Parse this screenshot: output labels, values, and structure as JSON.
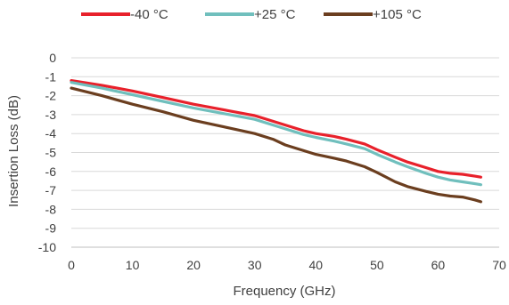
{
  "chart_data": {
    "type": "line",
    "title": "",
    "xlabel": "Frequency (GHz)",
    "ylabel": "Insertion Loss (dB)",
    "xlim": [
      0,
      70
    ],
    "ylim": [
      -10,
      0
    ],
    "xticks": [
      0,
      10,
      20,
      30,
      40,
      50,
      60,
      70
    ],
    "yticks": [
      0,
      -1,
      -2,
      -3,
      -4,
      -5,
      -6,
      -7,
      -8,
      -9,
      -10
    ],
    "grid": "horizontal",
    "legend_position": "top",
    "series": [
      {
        "name": "-40 °C",
        "color": "#e8212b",
        "x": [
          0,
          5,
          10,
          15,
          20,
          25,
          30,
          33,
          35,
          38,
          40,
          43,
          45,
          48,
          50,
          53,
          55,
          58,
          60,
          62,
          64,
          66,
          67
        ],
        "y": [
          -1.2,
          -1.45,
          -1.75,
          -2.1,
          -2.45,
          -2.75,
          -3.05,
          -3.35,
          -3.55,
          -3.85,
          -4.0,
          -4.15,
          -4.3,
          -4.55,
          -4.85,
          -5.25,
          -5.5,
          -5.8,
          -6.0,
          -6.1,
          -6.15,
          -6.25,
          -6.3
        ]
      },
      {
        "name": "+25 °C",
        "color": "#70bfbd",
        "x": [
          0,
          5,
          10,
          15,
          20,
          25,
          30,
          33,
          35,
          38,
          40,
          43,
          45,
          48,
          50,
          53,
          55,
          58,
          60,
          62,
          64,
          66,
          67
        ],
        "y": [
          -1.3,
          -1.6,
          -1.95,
          -2.3,
          -2.65,
          -2.95,
          -3.25,
          -3.55,
          -3.75,
          -4.05,
          -4.2,
          -4.4,
          -4.55,
          -4.8,
          -5.1,
          -5.5,
          -5.75,
          -6.1,
          -6.3,
          -6.45,
          -6.55,
          -6.65,
          -6.7
        ]
      },
      {
        "name": "+105 °C",
        "color": "#6b3e1f",
        "x": [
          0,
          5,
          10,
          15,
          20,
          25,
          30,
          33,
          35,
          38,
          40,
          43,
          45,
          48,
          50,
          53,
          55,
          58,
          60,
          62,
          64,
          66,
          67
        ],
        "y": [
          -1.6,
          -2.0,
          -2.45,
          -2.85,
          -3.3,
          -3.65,
          -4.0,
          -4.3,
          -4.6,
          -4.9,
          -5.1,
          -5.3,
          -5.45,
          -5.75,
          -6.05,
          -6.55,
          -6.8,
          -7.05,
          -7.2,
          -7.3,
          -7.35,
          -7.5,
          -7.6
        ]
      }
    ]
  }
}
